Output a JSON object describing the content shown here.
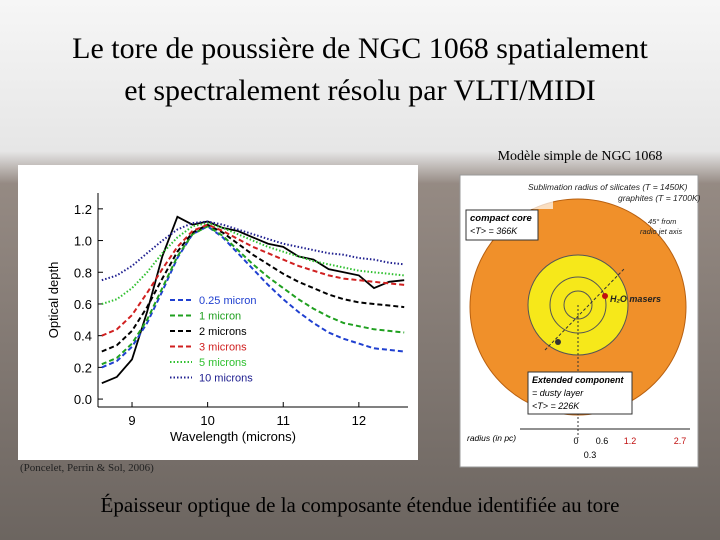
{
  "header": {
    "title_lines": [
      "Le tore de poussière de NGC 1068 spatialement",
      "et spectralement résolu par VLTI/MIDI"
    ]
  },
  "model_caption": "Modèle simple de NGC 1068",
  "chart_data": {
    "type": "line",
    "xlabel": "Wavelength (microns)",
    "ylabel": "Optical depth",
    "x": [
      8.6,
      8.8,
      9.0,
      9.2,
      9.4,
      9.6,
      9.8,
      10.0,
      10.2,
      10.4,
      10.6,
      10.8,
      11.0,
      11.2,
      11.4,
      11.6,
      11.8,
      12.0,
      12.2,
      12.4,
      12.6
    ],
    "xlim": [
      8.55,
      12.65
    ],
    "xticks": [
      9,
      10,
      11,
      12
    ],
    "ylim": [
      -0.05,
      1.3
    ],
    "yticks": [
      {
        "value": 0,
        "label": "0.0"
      },
      0.2,
      0.4,
      0.6,
      0.8,
      {
        "value": 1,
        "label": "1.0"
      },
      1.2
    ],
    "series": [
      {
        "color": "#000000",
        "style": "solid",
        "values": [
          0.1,
          0.14,
          0.25,
          0.55,
          0.9,
          1.15,
          1.1,
          1.12,
          1.08,
          1.06,
          1.02,
          0.98,
          0.96,
          0.9,
          0.88,
          0.82,
          0.8,
          0.78,
          0.7,
          0.74,
          0.75
        ]
      },
      {
        "name": "0.25 micron",
        "color": "#2040d0",
        "style": "dashed",
        "values": [
          0.2,
          0.24,
          0.33,
          0.48,
          0.68,
          0.89,
          1.04,
          1.09,
          1.02,
          0.92,
          0.82,
          0.72,
          0.63,
          0.55,
          0.48,
          0.42,
          0.38,
          0.35,
          0.32,
          0.31,
          0.3
        ]
      },
      {
        "name": "1 micron",
        "color": "#20a020",
        "style": "dashed",
        "values": [
          0.22,
          0.26,
          0.35,
          0.5,
          0.7,
          0.9,
          1.04,
          1.09,
          1.03,
          0.94,
          0.85,
          0.77,
          0.7,
          0.63,
          0.57,
          0.52,
          0.48,
          0.46,
          0.44,
          0.43,
          0.42
        ]
      },
      {
        "name": "2 microns",
        "color": "#000000",
        "style": "dashed",
        "values": [
          0.3,
          0.34,
          0.43,
          0.58,
          0.76,
          0.93,
          1.05,
          1.1,
          1.05,
          0.98,
          0.91,
          0.85,
          0.79,
          0.74,
          0.7,
          0.66,
          0.63,
          0.61,
          0.6,
          0.59,
          0.58
        ]
      },
      {
        "name": "3 microns",
        "color": "#d02020",
        "style": "dashed",
        "values": [
          0.4,
          0.44,
          0.53,
          0.67,
          0.82,
          0.96,
          1.06,
          1.1,
          1.06,
          1.01,
          0.96,
          0.92,
          0.88,
          0.84,
          0.81,
          0.78,
          0.76,
          0.75,
          0.74,
          0.73,
          0.72
        ]
      },
      {
        "name": "5 microns",
        "color": "#30c030",
        "style": "dotted",
        "values": [
          0.6,
          0.63,
          0.7,
          0.8,
          0.92,
          1.02,
          1.09,
          1.11,
          1.08,
          1.04,
          1.0,
          0.96,
          0.93,
          0.9,
          0.87,
          0.85,
          0.83,
          0.81,
          0.8,
          0.79,
          0.78
        ]
      },
      {
        "name": "10 microns",
        "color": "#202090",
        "style": "dotted",
        "values": [
          0.75,
          0.78,
          0.84,
          0.92,
          1.0,
          1.07,
          1.11,
          1.12,
          1.1,
          1.07,
          1.04,
          1.01,
          0.98,
          0.96,
          0.94,
          0.92,
          0.91,
          0.89,
          0.88,
          0.86,
          0.85
        ]
      }
    ]
  },
  "chart_credit": "(Poncelet, Perrin & Sol, 2006)",
  "diagram": {
    "sublimation": "Sublimation radius of silicates (T = 1450K)",
    "graphites": "graphites (T = 1700K)",
    "core": "compact core",
    "core_temp": "<T> = 366K",
    "jet_line1": "45° from",
    "jet_line2": "radio jet axis",
    "masers": "H₂O masers",
    "extended_line1": "Extended component",
    "extended_line2": "= dusty layer",
    "extended_temp": "<T> = 226K",
    "radius_label": "radius (in pc)",
    "radius_ticks": [
      "0",
      "0.6",
      "1.2",
      "2.7"
    ],
    "radius_inner": "0.3"
  },
  "footer_caption": "Épaisseur optique de la composante étendue identifiée au tore"
}
